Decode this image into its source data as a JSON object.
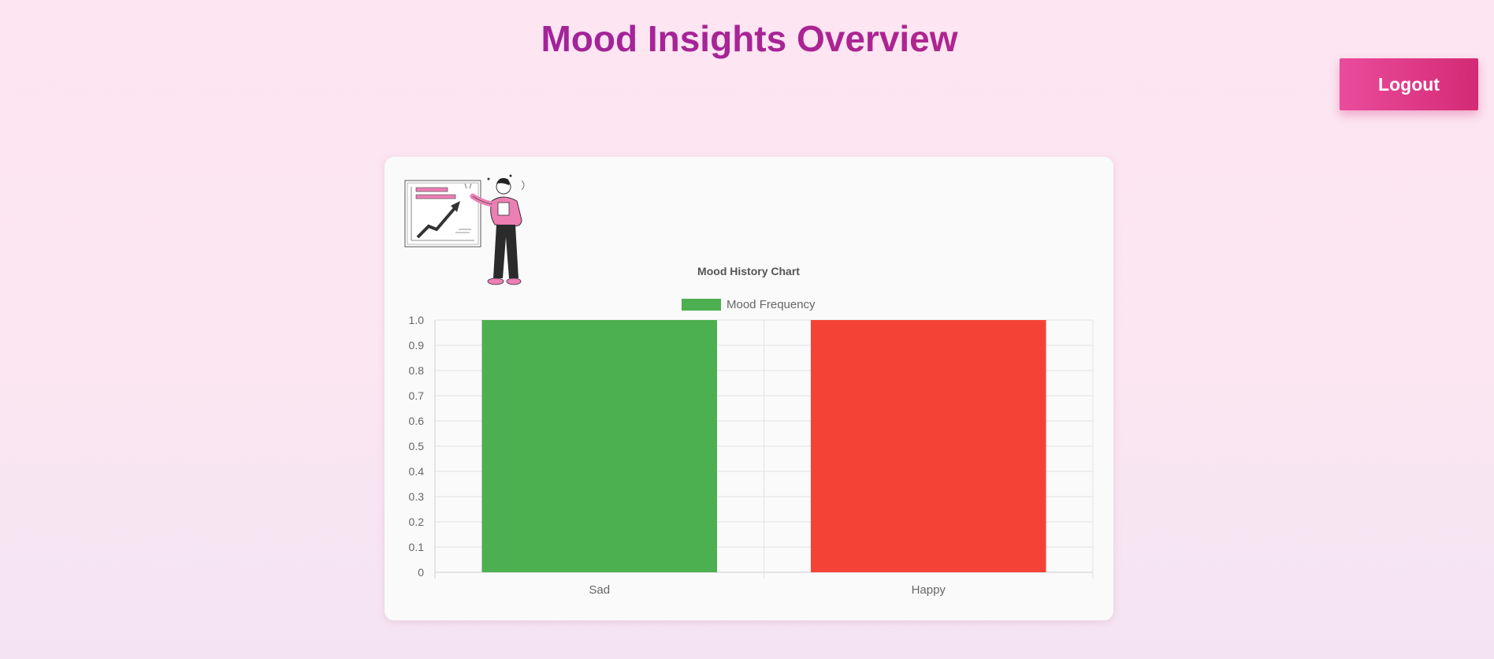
{
  "header": {
    "title": "Mood Insights Overview"
  },
  "toolbar": {
    "logout_label": "Logout"
  },
  "colors": {
    "title_gradient_start": "#8e24aa",
    "title_gradient_end": "#c2257f",
    "logout_gradient_start": "#ea4c9c",
    "logout_gradient_end": "#d42a75",
    "illustration_accent": "#ec7fb3"
  },
  "illustration": {
    "icon": "presenter-with-growth-chart-illustration"
  },
  "chart_data": {
    "type": "bar",
    "title": "Mood History Chart",
    "categories": [
      "Sad",
      "Happy"
    ],
    "series": [
      {
        "name": "Mood Frequency",
        "values": [
          1,
          1
        ],
        "colors": [
          "#4caf50",
          "#f44336"
        ]
      }
    ],
    "xlabel": "",
    "ylabel": "",
    "ylim": [
      0,
      1
    ],
    "yticks": [
      "0",
      "0.1",
      "0.2",
      "0.3",
      "0.4",
      "0.5",
      "0.6",
      "0.7",
      "0.8",
      "0.9",
      "1.0"
    ],
    "grid": true,
    "legend": "top-center"
  }
}
